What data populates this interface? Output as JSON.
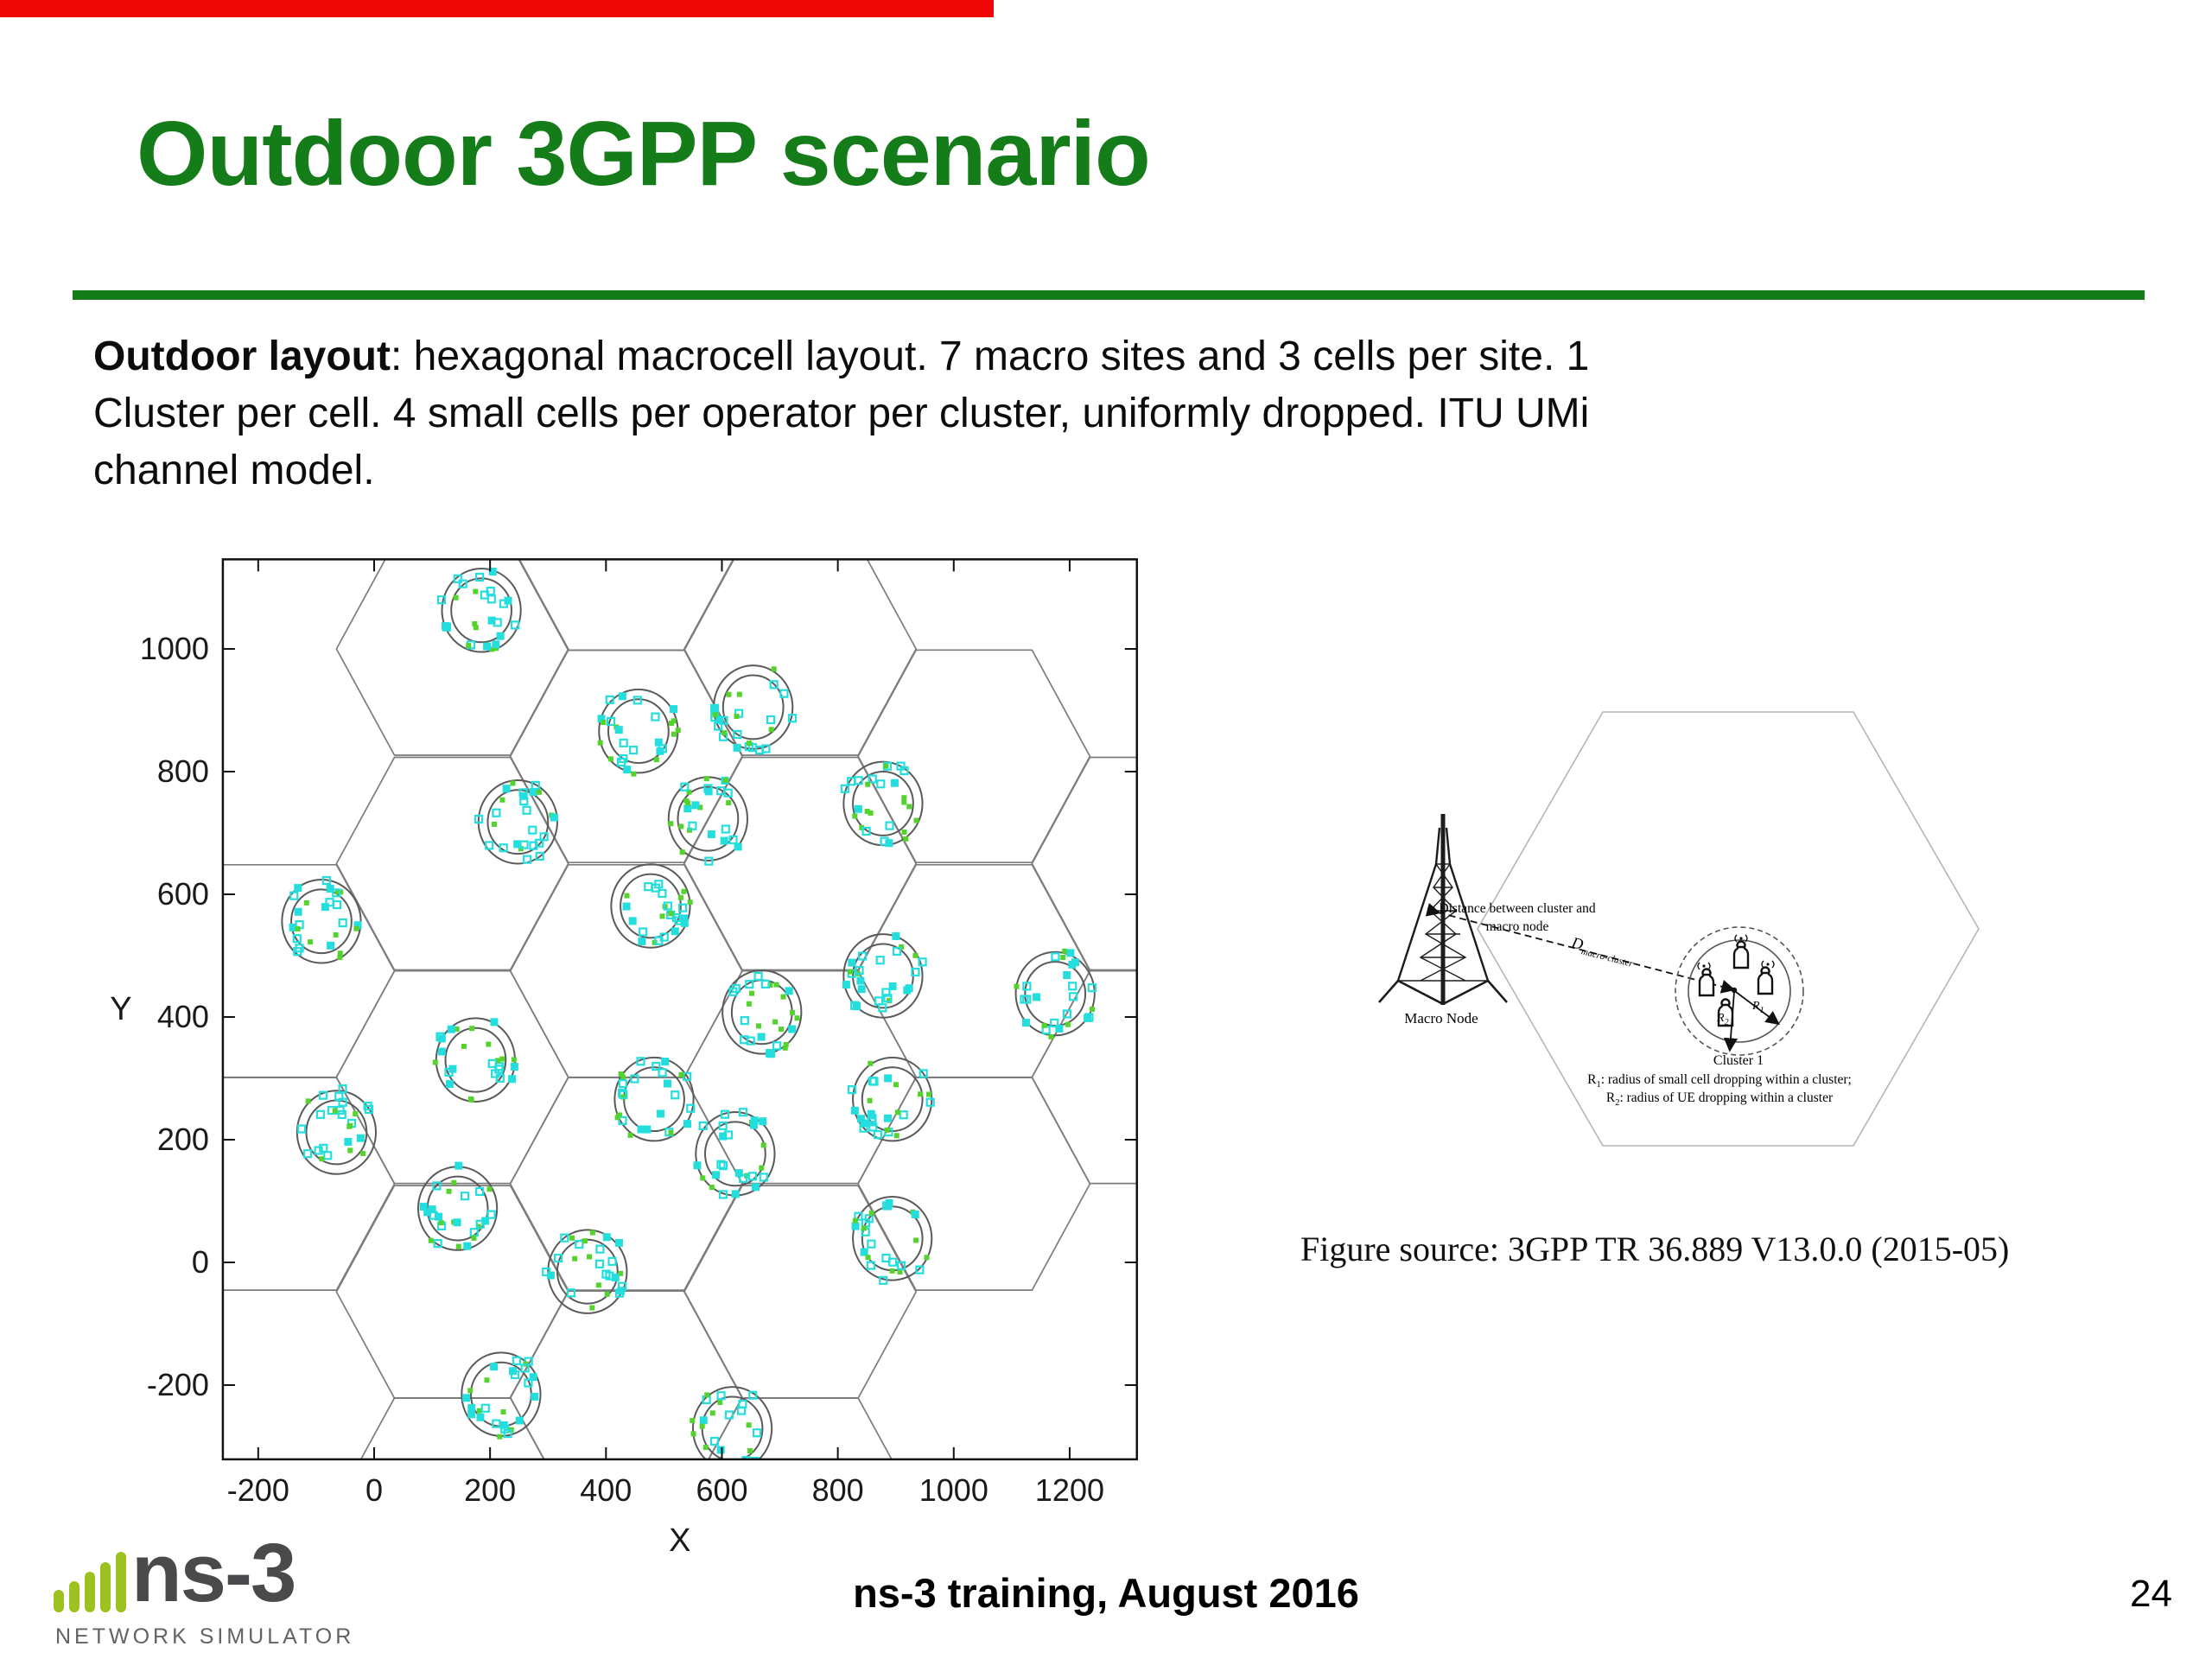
{
  "slide": {
    "accent_color": "#ee0505",
    "title": "Outdoor 3GPP scenario",
    "title_color": "#147d19",
    "body_lines": {
      "lead_bold": "Outdoor layout",
      "line1_rest": ": hexagonal macrocell layout. 7 macro sites and 3 cells per site. 1",
      "line2": "Cluster per cell. 4 small cells per operator per cluster, uniformly dropped. ITU UMi",
      "line3": "channel model."
    },
    "figure_source": "Figure source:  3GPP TR 36.889 V13.0.0 (2015-05)",
    "footer": {
      "center_text": "ns-3 training, August 2016",
      "page_number": "24",
      "logo_word": "ns-3",
      "logo_subtext": "NETWORK SIMULATOR",
      "logo_green": "#9cc121",
      "logo_gray": "#4a4a4c"
    }
  },
  "chart_data": {
    "type": "scatter",
    "title": "",
    "xlabel": "X",
    "ylabel": "Y",
    "xlim": [
      -261,
      1316
    ],
    "ylim": [
      -321,
      1146
    ],
    "xticks": [
      -200,
      0,
      200,
      400,
      600,
      800,
      1000,
      1200
    ],
    "yticks": [
      -200,
      0,
      200,
      400,
      600,
      800,
      1000
    ],
    "grid": false,
    "legend": "none",
    "hex_radius": 200,
    "hex_centers": [
      [
        -165,
        128
      ],
      [
        -165,
        475
      ],
      [
        135,
        -394
      ],
      [
        135,
        -48
      ],
      [
        135,
        302
      ],
      [
        135,
        650
      ],
      [
        135,
        1000
      ],
      [
        435,
        -220
      ],
      [
        435,
        128
      ],
      [
        435,
        475
      ],
      [
        435,
        825
      ],
      [
        435,
        1171
      ],
      [
        735,
        -394
      ],
      [
        735,
        -48
      ],
      [
        735,
        302
      ],
      [
        735,
        650
      ],
      [
        735,
        1000
      ],
      [
        1035,
        128
      ],
      [
        1035,
        475
      ],
      [
        1035,
        825
      ],
      [
        1335,
        302
      ],
      [
        1335,
        650
      ]
    ],
    "cluster_outer_radius": 68,
    "cluster_inner_radius": 52,
    "clusters": [
      [
        185,
        1063
      ],
      [
        456,
        866
      ],
      [
        654,
        905
      ],
      [
        248,
        718
      ],
      [
        576,
        723
      ],
      [
        878,
        748
      ],
      [
        -91,
        556
      ],
      [
        477,
        581
      ],
      [
        669,
        408
      ],
      [
        878,
        467
      ],
      [
        1175,
        438
      ],
      [
        175,
        330
      ],
      [
        483,
        266
      ],
      [
        623,
        177
      ],
      [
        894,
        266
      ],
      [
        -65,
        212
      ],
      [
        144,
        88
      ],
      [
        368,
        -15
      ],
      [
        894,
        39
      ],
      [
        219,
        -215
      ],
      [
        618,
        -271
      ]
    ],
    "points_per_cluster": 26,
    "colors": {
      "ue_marker": "#24dedd",
      "small_cell_marker": "#53d32c",
      "hex_stroke": "#7c7c7c",
      "circle_stroke": "#5a5a5a",
      "frame": "#111111"
    }
  },
  "diagram": {
    "macro_node_label": "Macro Node",
    "distance_line1": "Distance between cluster and",
    "distance_line2": "macro node",
    "d_label": "D",
    "d_sub": "macro-cluster",
    "cluster_label": "Cluster 1",
    "r1_prefix": "R",
    "r1_sub": "1",
    "r1_text": ": radius of small cell dropping within a cluster;",
    "r2_prefix": "R",
    "r2_sub": "2",
    "r2_text": ": radius of UE dropping within a cluster"
  }
}
